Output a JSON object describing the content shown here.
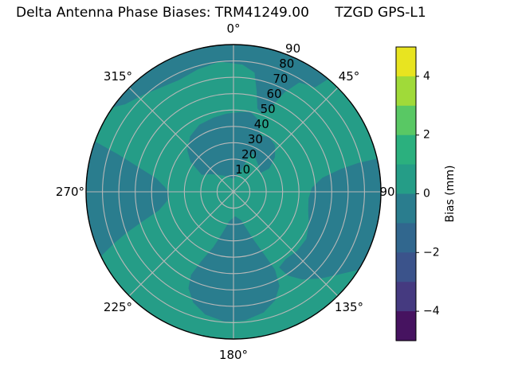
{
  "title": "Delta Antenna Phase Biases: TRM41249.00      TZGD GPS-L1",
  "chart_data": {
    "type": "polar_contour",
    "title": "Delta Antenna Phase Biases: TRM41249.00      TZGD GPS-L1",
    "angular_ticks": [
      {
        "label": "0°",
        "deg": 0
      },
      {
        "label": "45°",
        "deg": 45
      },
      {
        "label": "90",
        "deg": 90
      },
      {
        "label": "135°",
        "deg": 135
      },
      {
        "label": "180°",
        "deg": 180
      },
      {
        "label": "225°",
        "deg": 225
      },
      {
        "label": "270°",
        "deg": 270
      },
      {
        "label": "315°",
        "deg": 315
      }
    ],
    "radial_ticks": [
      10,
      20,
      30,
      40,
      50,
      60,
      70,
      80,
      90
    ],
    "radial_tick_azimuth_deg": 22.5,
    "grid_color": "#b8b8b8",
    "colorbar": {
      "label": "Bias (mm)",
      "range": [
        -5,
        5
      ],
      "n_levels": 10,
      "ticks": [
        {
          "label": "4",
          "value": 4
        },
        {
          "label": "2",
          "value": 2
        },
        {
          "label": "0",
          "value": 0
        },
        {
          "label": "−2",
          "value": -2
        },
        {
          "label": "−4",
          "value": -4
        }
      ],
      "colors_top_to_bottom": [
        "#e8e420",
        "#a0da39",
        "#59c864",
        "#2bb07e",
        "#259d87",
        "#2a7d8e",
        "#31678e",
        "#3b538b",
        "#453a80",
        "#461360"
      ]
    },
    "field": {
      "base_bias_mm": [
        0,
        1
      ],
      "base_color": "#259d87",
      "negative_bias_mm": [
        -1,
        0
      ],
      "negative_color": "#2a7d8e",
      "negative_regions": [
        {
          "name": "top-cap-with-tongue",
          "edge_arc": [
            -55,
            40
          ],
          "points": [
            [
              38,
              81
            ],
            [
              31,
              78
            ],
            [
              27,
              68
            ],
            [
              24,
              57
            ],
            [
              20,
              51
            ],
            [
              16,
              53
            ],
            [
              13,
              63
            ],
            [
              10,
              74
            ],
            [
              4,
              78
            ],
            [
              -6,
              80
            ],
            [
              -16,
              78
            ],
            [
              -26,
              76
            ],
            [
              -36,
              78
            ],
            [
              -43,
              81
            ],
            [
              -51,
              85
            ]
          ]
        },
        {
          "name": "center-blob",
          "edge_arc": null,
          "points": [
            [
              -62,
              22
            ],
            [
              -55,
              32
            ],
            [
              -48,
              38
            ],
            [
              -38,
              43
            ],
            [
              -27,
              46
            ],
            [
              -15,
              47
            ],
            [
              -5,
              48
            ],
            [
              5,
              49
            ],
            [
              12,
              50
            ],
            [
              18,
              47
            ],
            [
              22,
              42
            ],
            [
              26,
              38
            ],
            [
              33,
              40
            ],
            [
              42,
              38
            ],
            [
              50,
              33
            ],
            [
              57,
              26
            ],
            [
              55,
              20
            ],
            [
              45,
              22
            ],
            [
              35,
              24
            ],
            [
              27,
              26
            ],
            [
              23,
              22
            ],
            [
              20,
              14
            ],
            [
              12,
              10
            ],
            [
              0,
              8
            ],
            [
              -14,
              9
            ],
            [
              -28,
              11
            ],
            [
              -42,
              14
            ],
            [
              -53,
              18
            ]
          ]
        },
        {
          "name": "left-band",
          "edge_arc": [
            244,
            290
          ],
          "points": [
            [
              288,
              74
            ],
            [
              284,
              58
            ],
            [
              280,
              48
            ],
            [
              274,
              42
            ],
            [
              268,
              39
            ],
            [
              262,
              41
            ],
            [
              256,
              47
            ],
            [
              252,
              58
            ],
            [
              249,
              70
            ],
            [
              246.5,
              80
            ]
          ]
        },
        {
          "name": "bottom-lobe",
          "edge_arc": null,
          "points": [
            [
              176,
              15
            ],
            [
              165,
              18
            ],
            [
              158,
              30
            ],
            [
              154,
              42
            ],
            [
              152,
              54
            ],
            [
              154,
              64
            ],
            [
              159,
              71
            ],
            [
              166,
              76
            ],
            [
              175,
              79
            ],
            [
              184,
              79.5
            ],
            [
              193,
              77
            ],
            [
              200,
              72
            ],
            [
              205,
              65
            ],
            [
              207,
              57
            ],
            [
              205,
              47
            ],
            [
              200,
              36
            ],
            [
              195,
              26
            ],
            [
              188,
              18
            ]
          ]
        },
        {
          "name": "right-lower-right-blob",
          "edge_arc": [
            77,
            122
          ],
          "points": [
            [
              128,
              82
            ],
            [
              135,
              75
            ],
            [
              142,
              68
            ],
            [
              147,
              61
            ],
            [
              149,
              54
            ],
            [
              142,
              52
            ],
            [
              133,
              53
            ],
            [
              123,
              53
            ],
            [
              113,
              50
            ],
            [
              104,
              47
            ],
            [
              95,
              46
            ],
            [
              87,
              48
            ],
            [
              81,
              55
            ],
            [
              78,
              67
            ],
            [
              77,
              78
            ]
          ]
        }
      ]
    }
  }
}
